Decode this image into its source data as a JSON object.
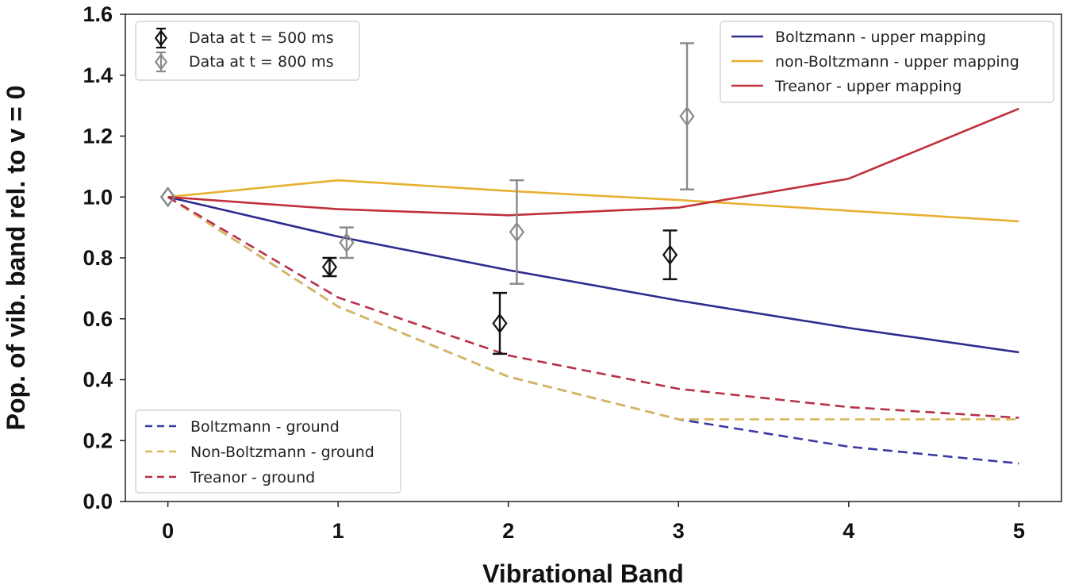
{
  "chart_data": {
    "type": "line",
    "xlabel": "Vibrational Band",
    "ylabel": "Pop. of vib. band rel. to v = 0",
    "xlim": [
      -0.25,
      5.25
    ],
    "ylim": [
      0.0,
      1.6
    ],
    "xticks": [
      "0",
      "1",
      "2",
      "3",
      "4",
      "5"
    ],
    "yticks": [
      "0.0",
      "0.2",
      "0.4",
      "0.6",
      "0.8",
      "1.0",
      "1.2",
      "1.4",
      "1.6"
    ],
    "grid": false,
    "series": [
      {
        "name": "Boltzmann - upper mapping",
        "style": "solid",
        "color": "#2e2b8f",
        "x": [
          0,
          1,
          2,
          3,
          4,
          5
        ],
        "y": [
          1.0,
          0.87,
          0.76,
          0.66,
          0.57,
          0.49
        ]
      },
      {
        "name": "non-Boltzmann - upper mapping",
        "style": "solid",
        "color": "#e8b030",
        "x": [
          0,
          1,
          2,
          3,
          4,
          5
        ],
        "y": [
          1.0,
          1.055,
          1.02,
          0.99,
          0.955,
          0.92
        ]
      },
      {
        "name": "Treanor - upper mapping",
        "style": "solid",
        "color": "#c0303a",
        "x": [
          0,
          1,
          2,
          3,
          4,
          5
        ],
        "y": [
          1.0,
          0.96,
          0.94,
          0.965,
          1.06,
          1.29
        ]
      },
      {
        "name": "Boltzmann - ground",
        "style": "dashed",
        "color": "#3a3aa0",
        "x": [
          0,
          1,
          2,
          3,
          4,
          5
        ],
        "y": [
          1.0,
          0.64,
          0.41,
          0.27,
          0.18,
          0.125
        ]
      },
      {
        "name": "Non-Boltzmann - ground",
        "style": "dashed",
        "color": "#d9b85a",
        "x": [
          0,
          1,
          2,
          3,
          4,
          5
        ],
        "y": [
          1.0,
          0.64,
          0.41,
          0.27,
          0.27,
          0.27
        ]
      },
      {
        "name": "Treanor - ground",
        "style": "dashed",
        "color": "#b8304a",
        "x": [
          0,
          1,
          2,
          3,
          4,
          5
        ],
        "y": [
          1.0,
          0.67,
          0.48,
          0.37,
          0.31,
          0.275
        ]
      }
    ],
    "errorbar_series": [
      {
        "name": "Data at t = 500 ms",
        "color": "#111111",
        "points": [
          {
            "x": 0,
            "y": 1.0,
            "err": 0.0
          },
          {
            "x": 0.95,
            "y": 0.77,
            "err": 0.03
          },
          {
            "x": 1.95,
            "y": 0.585,
            "err": 0.1
          },
          {
            "x": 2.95,
            "y": 0.81,
            "err": 0.08
          }
        ]
      },
      {
        "name": "Data at t = 800 ms",
        "color": "#8a8a8a",
        "points": [
          {
            "x": 0,
            "y": 1.0,
            "err": 0.0
          },
          {
            "x": 1.05,
            "y": 0.85,
            "err": 0.05
          },
          {
            "x": 2.05,
            "y": 0.885,
            "err": 0.17
          },
          {
            "x": 3.05,
            "y": 1.265,
            "err": 0.24
          }
        ]
      }
    ],
    "legends": {
      "data": {
        "placement": "top-left",
        "entries": [
          "Data at t = 500 ms",
          "Data at t = 800 ms"
        ]
      },
      "upper": {
        "placement": "top-right",
        "entries": [
          "Boltzmann - upper mapping",
          "non-Boltzmann - upper mapping",
          "Treanor - upper mapping"
        ]
      },
      "ground": {
        "placement": "bottom-left",
        "entries": [
          "Boltzmann - ground",
          "Non-Boltzmann - ground",
          "Treanor - ground"
        ]
      }
    }
  }
}
